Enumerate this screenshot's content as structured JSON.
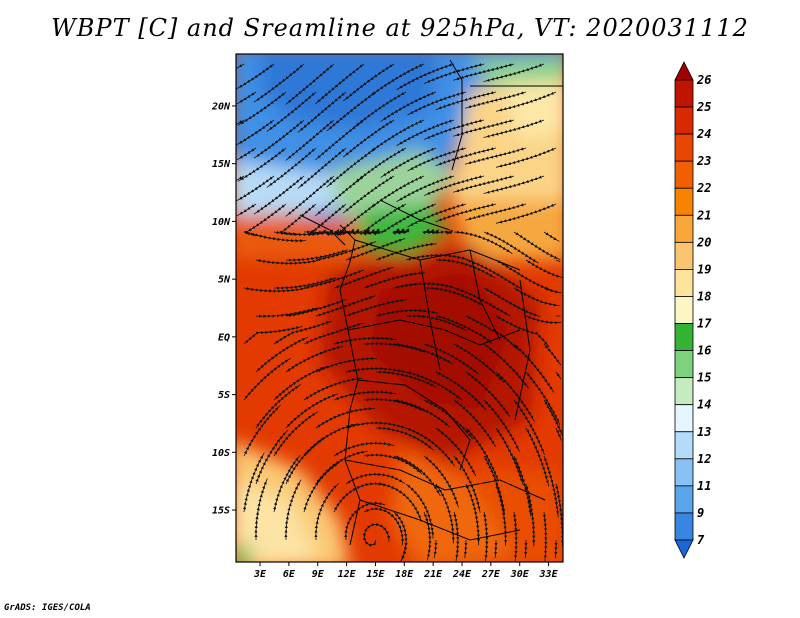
{
  "title": "WBPT [C] and Sreamline at 925hPa, VT: 2020031112",
  "credit": "GrADS: IGES/COLA",
  "map": {
    "variable": "Wet-bulb potential temperature",
    "units": "C",
    "level": "925hPa",
    "valid_time": "2020031112",
    "lon_labels": [
      "3E",
      "6E",
      "9E",
      "12E",
      "15E",
      "18E",
      "21E",
      "24E",
      "27E",
      "30E",
      "33E"
    ],
    "lat_labels": [
      "20N",
      "15N",
      "10N",
      "5N",
      "EQ",
      "5S",
      "10S",
      "15S"
    ],
    "lon_range": [
      0.5,
      34.5
    ],
    "lat_range": [
      -19.5,
      24.5
    ]
  },
  "colorbar": {
    "labels": [
      "26",
      "25",
      "24",
      "23",
      "22",
      "21",
      "20",
      "19",
      "18",
      "17",
      "16",
      "15",
      "14",
      "13",
      "12",
      "11",
      "9",
      "7"
    ],
    "colors": [
      "#a00000",
      "#c01400",
      "#d82a00",
      "#e84500",
      "#f06000",
      "#f68400",
      "#f9a63a",
      "#fbc46e",
      "#fde39c",
      "#fbf6c4",
      "#34b234",
      "#7ed27e",
      "#c4ecc0",
      "#e6f6ff",
      "#b4dcfa",
      "#88c2f4",
      "#5aa4ec",
      "#3686e2",
      "#1c66d8"
    ]
  }
}
